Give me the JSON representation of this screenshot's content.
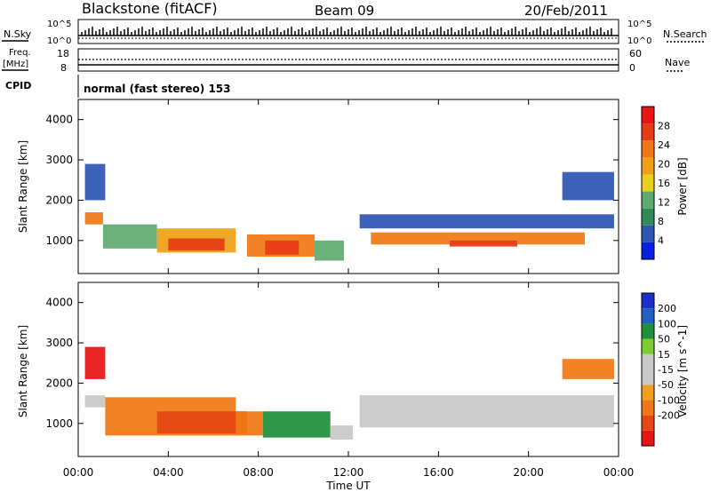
{
  "header": {
    "station": "Blackstone (fitACF)",
    "beam": "Beam 09",
    "date": "20/Feb/2011"
  },
  "top_panels": {
    "nsky_label": "N.Sky",
    "nsky_ticks": [
      "10^5",
      "10^0"
    ],
    "nsearch_label": "N.Search",
    "nsearch_ticks": [
      "10^5",
      "10^0"
    ],
    "freq_label": "Freq.",
    "freq_unit": "[MHz]",
    "freq_ticks": [
      "18",
      "8"
    ],
    "nave_label": "Nave",
    "nave_ticks": [
      "60",
      "0"
    ],
    "cpid_label": "CPID",
    "cpid_text": "normal (fast stereo) 153"
  },
  "colors": {
    "power_scale": [
      "#0a1ee6",
      "#2d55b4",
      "#2e8b57",
      "#5faa6e",
      "#e6d21e",
      "#f0a014",
      "#f07814",
      "#e63c14",
      "#e61414"
    ],
    "velocity_scale": [
      "#1c2ec8",
      "#2060c0",
      "#1e8f3c",
      "#7ccd32",
      "#c8c8c8",
      "#c8c8c8",
      "#f0a01e",
      "#f07814",
      "#e64614",
      "#e61414"
    ]
  },
  "chart_data": [
    {
      "type": "heatmap",
      "title": "Power",
      "ylabel": "Slant Range [km]",
      "xlabel": "Time UT",
      "xlim": [
        "00:00",
        "24:00"
      ],
      "x_ticks": [
        "00:00",
        "04:00",
        "08:00",
        "12:00",
        "16:00",
        "20:00",
        "00:00"
      ],
      "ylim": [
        180,
        4500
      ],
      "y_ticks": [
        1000,
        2000,
        3000,
        4000
      ],
      "colorbar": {
        "label": "Power [dB]",
        "range": [
          0,
          32
        ],
        "ticks": [
          4,
          8,
          12,
          16,
          20,
          24,
          28
        ]
      },
      "regions": [
        {
          "t_start": 0.3,
          "t_end": 1.1,
          "r_min": 1400,
          "r_max": 1700,
          "power_db": 22
        },
        {
          "t_start": 0.3,
          "t_end": 1.2,
          "r_min": 2000,
          "r_max": 2900,
          "power_db": 4
        },
        {
          "t_start": 1.1,
          "t_end": 3.5,
          "r_min": 800,
          "r_max": 1400,
          "power_db": 12
        },
        {
          "t_start": 3.5,
          "t_end": 7.0,
          "r_min": 700,
          "r_max": 1300,
          "power_db": 20
        },
        {
          "t_start": 4.0,
          "t_end": 6.5,
          "r_min": 750,
          "r_max": 1050,
          "power_db": 26
        },
        {
          "t_start": 7.5,
          "t_end": 10.5,
          "r_min": 600,
          "r_max": 1150,
          "power_db": 22
        },
        {
          "t_start": 8.3,
          "t_end": 9.8,
          "r_min": 650,
          "r_max": 1000,
          "power_db": 28
        },
        {
          "t_start": 10.5,
          "t_end": 11.8,
          "r_min": 500,
          "r_max": 1000,
          "power_db": 14
        },
        {
          "t_start": 12.5,
          "t_end": 23.8,
          "r_min": 1300,
          "r_max": 1650,
          "power_db": 6
        },
        {
          "t_start": 13.0,
          "t_end": 22.5,
          "r_min": 900,
          "r_max": 1200,
          "power_db": 22
        },
        {
          "t_start": 16.5,
          "t_end": 19.5,
          "r_min": 850,
          "r_max": 1000,
          "power_db": 28
        },
        {
          "t_start": 21.5,
          "t_end": 23.8,
          "r_min": 2000,
          "r_max": 2700,
          "power_db": 4
        }
      ]
    },
    {
      "type": "heatmap",
      "title": "Velocity",
      "ylabel": "Slant Range [km]",
      "xlabel": "Time UT",
      "xlim": [
        "00:00",
        "24:00"
      ],
      "x_ticks": [
        "00:00",
        "04:00",
        "08:00",
        "12:00",
        "16:00",
        "20:00",
        "00:00"
      ],
      "ylim": [
        180,
        4500
      ],
      "y_ticks": [
        1000,
        2000,
        3000,
        4000
      ],
      "colorbar": {
        "label": "Velocity [m s^-1]",
        "ticks": [
          200,
          100,
          50,
          15,
          -15,
          -50,
          -100,
          -200
        ]
      },
      "regions": [
        {
          "t_start": 0.3,
          "t_end": 1.2,
          "r_min": 2100,
          "r_max": 2900,
          "velocity": -200
        },
        {
          "t_start": 0.3,
          "t_end": 1.2,
          "r_min": 1400,
          "r_max": 1700,
          "velocity": 0
        },
        {
          "t_start": 1.2,
          "t_end": 7.0,
          "r_min": 700,
          "r_max": 1650,
          "velocity": -50
        },
        {
          "t_start": 3.5,
          "t_end": 7.5,
          "r_min": 750,
          "r_max": 1300,
          "velocity": -100
        },
        {
          "t_start": 7.0,
          "t_end": 8.2,
          "r_min": 700,
          "r_max": 1300,
          "velocity": -50
        },
        {
          "t_start": 8.2,
          "t_end": 11.2,
          "r_min": 650,
          "r_max": 1300,
          "velocity": 50
        },
        {
          "t_start": 11.2,
          "t_end": 12.2,
          "r_min": 600,
          "r_max": 950,
          "velocity": 0
        },
        {
          "t_start": 12.5,
          "t_end": 23.8,
          "r_min": 900,
          "r_max": 1700,
          "velocity": 0
        },
        {
          "t_start": 21.5,
          "t_end": 23.8,
          "r_min": 2100,
          "r_max": 2600,
          "velocity": -50
        }
      ]
    }
  ]
}
